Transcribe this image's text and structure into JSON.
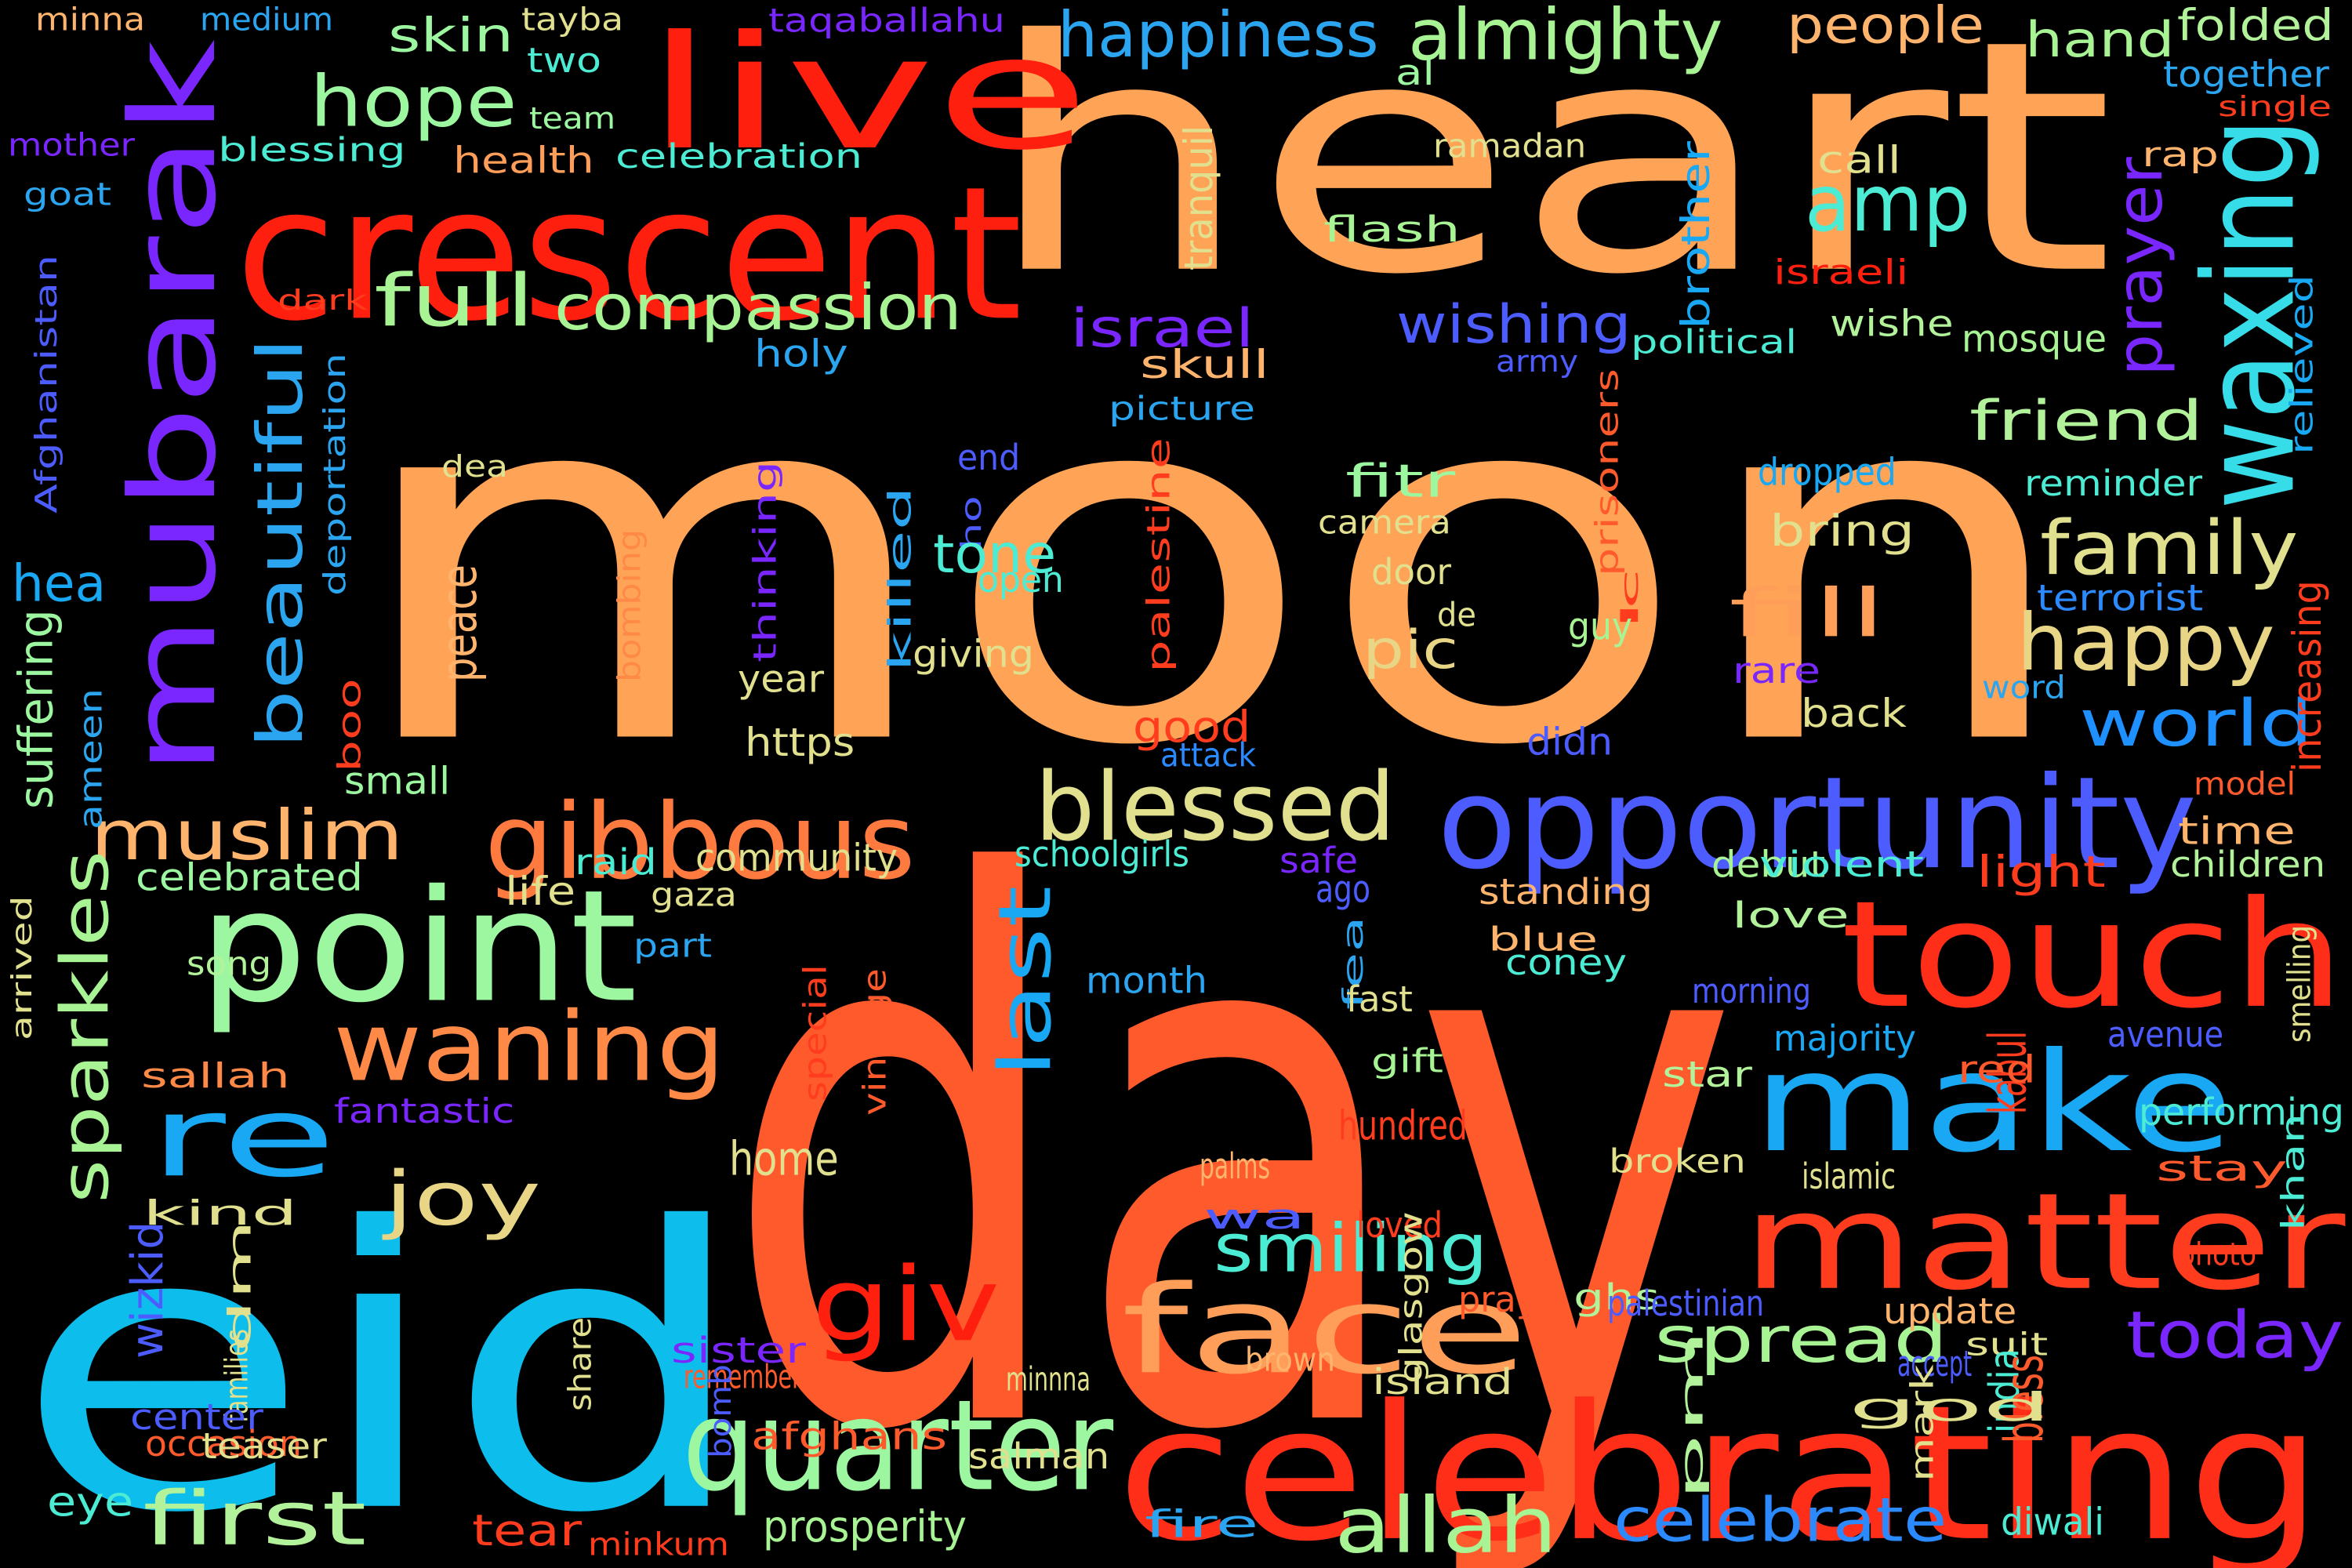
{
  "title": "",
  "background_color": "#000000",
  "words": [
    {
      "text": "moon",
      "color": "#FFA456"
    },
    {
      "text": "day",
      "color": "#FF5A2C"
    },
    {
      "text": "heart",
      "color": "#FFA456"
    },
    {
      "text": "eid",
      "color": "#0DBDEB"
    },
    {
      "text": "crescent",
      "color": "#FF1F0F"
    },
    {
      "text": "live",
      "color": "#FF1F0F"
    },
    {
      "text": "mubarak",
      "color": "#7A26FF"
    },
    {
      "text": "celebrating",
      "color": "#FF2E18"
    },
    {
      "text": "touch",
      "color": "#FF2E18"
    },
    {
      "text": "point",
      "color": "#9CF7A0"
    },
    {
      "text": "matter",
      "color": "#FF3D1E"
    },
    {
      "text": "make",
      "color": "#18A8F4"
    },
    {
      "text": "opportunity",
      "color": "#4C5CFF"
    },
    {
      "text": "re",
      "color": "#18A8F4"
    },
    {
      "text": "gibbous",
      "color": "#FF7A3E"
    },
    {
      "text": "waning",
      "color": "#FF8A48"
    },
    {
      "text": "quarter",
      "color": "#9CF7A0"
    },
    {
      "text": "blessed",
      "color": "#E0E08E"
    },
    {
      "text": "face",
      "color": "#FF9E58"
    },
    {
      "text": "giv",
      "color": "#FF1F0F"
    },
    {
      "text": "waxing",
      "color": "#36DCE8"
    },
    {
      "text": "happy",
      "color": "#E8D686"
    },
    {
      "text": "family",
      "color": "#E0E08E"
    },
    {
      "text": "compassion",
      "color": "#A8F494"
    },
    {
      "text": "happiness",
      "color": "#2BA5F0"
    },
    {
      "text": "almighty",
      "color": "#A8F494"
    },
    {
      "text": "hope",
      "color": "#9CF7A0"
    },
    {
      "text": "full",
      "color": "#A8F494"
    },
    {
      "text": "amp",
      "color": "#4CECD4"
    },
    {
      "text": "beautiful",
      "color": "#2BA5F0"
    },
    {
      "text": "muslim",
      "color": "#FFB46E"
    },
    {
      "text": "sparkles",
      "color": "#A8F494"
    },
    {
      "text": "joy",
      "color": "#E8D686"
    },
    {
      "text": "first",
      "color": "#B2F29A"
    },
    {
      "text": "allah",
      "color": "#A8F494"
    },
    {
      "text": "celebrate",
      "color": "#2B8AFF"
    },
    {
      "text": "spread",
      "color": "#A8F494"
    },
    {
      "text": "today",
      "color": "#7A26FF"
    },
    {
      "text": "smiling",
      "color": "#4CECD4"
    },
    {
      "text": "last",
      "color": "#18A8F4"
    },
    {
      "text": "fill",
      "color": "#FF9E58"
    },
    {
      "text": "pic",
      "color": "#E8D686"
    },
    {
      "text": "world",
      "color": "#1E90FF"
    },
    {
      "text": "israel",
      "color": "#7A26FF"
    },
    {
      "text": "wishing",
      "color": "#4C5CFF"
    },
    {
      "text": "friend",
      "color": "#B2F29A"
    },
    {
      "text": "prayer",
      "color": "#7A26FF"
    },
    {
      "text": "people",
      "color": "#FFB46E"
    },
    {
      "text": "hand",
      "color": "#A8F494"
    },
    {
      "text": "folded",
      "color": "#B2F29A"
    },
    {
      "text": "skin",
      "color": "#9CF7A0"
    },
    {
      "text": "minna",
      "color": "#FFB46E"
    },
    {
      "text": "medium",
      "color": "#2BA5F0"
    },
    {
      "text": "tayba",
      "color": "#E0E08E"
    },
    {
      "text": "taqaballahu",
      "color": "#7A26FF"
    },
    {
      "text": "together",
      "color": "#2BA5F0"
    },
    {
      "text": "single",
      "color": "#FF3D1E"
    },
    {
      "text": "two",
      "color": "#4CECD4"
    },
    {
      "text": "team",
      "color": "#9CF7A0"
    },
    {
      "text": "al",
      "color": "#9CF7A0"
    },
    {
      "text": "mother",
      "color": "#7A26FF"
    },
    {
      "text": "blessing",
      "color": "#4CECD4"
    },
    {
      "text": "health",
      "color": "#FF9E58"
    },
    {
      "text": "celebration",
      "color": "#4CECD4"
    },
    {
      "text": "ramadan",
      "color": "#E0E08E"
    },
    {
      "text": "call",
      "color": "#E0E08E"
    },
    {
      "text": "rap",
      "color": "#FFB46E"
    },
    {
      "text": "goat",
      "color": "#2BA5F0"
    },
    {
      "text": "tranquil",
      "color": "#E0E08E"
    },
    {
      "text": "brother",
      "color": "#18A8F4"
    },
    {
      "text": "flash",
      "color": "#A8F494"
    },
    {
      "text": "israeli",
      "color": "#FF1F0F"
    },
    {
      "text": "dark",
      "color": "#FF3D1E"
    },
    {
      "text": "Afghanistan",
      "color": "#4C5CFF"
    },
    {
      "text": "political",
      "color": "#4CECD4"
    },
    {
      "text": "wishe",
      "color": "#B2F29A"
    },
    {
      "text": "mosque",
      "color": "#A8F494"
    },
    {
      "text": "holy",
      "color": "#2BA5F0"
    },
    {
      "text": "skull",
      "color": "#FFB46E"
    },
    {
      "text": "army",
      "color": "#4C5CFF"
    },
    {
      "text": "picture",
      "color": "#2BA5F0"
    },
    {
      "text": "relieved",
      "color": "#18A8F4"
    },
    {
      "text": "deportation",
      "color": "#2BA5F0"
    },
    {
      "text": "prisoners",
      "color": "#FF5A2C"
    },
    {
      "text": "dea",
      "color": "#E0E08E"
    },
    {
      "text": "end",
      "color": "#4C5CFF"
    },
    {
      "text": "dropped",
      "color": "#18A8F4"
    },
    {
      "text": "reminder",
      "color": "#4CECD4"
    },
    {
      "text": "thinking",
      "color": "#7A26FF"
    },
    {
      "text": "fitr",
      "color": "#9CF7A0"
    },
    {
      "text": "camera",
      "color": "#E0E08E"
    },
    {
      "text": "bring",
      "color": "#E0E08E"
    },
    {
      "text": "ho",
      "color": "#4C5CFF"
    },
    {
      "text": "palestine",
      "color": "#FF3D1E"
    },
    {
      "text": "tone",
      "color": "#4CECD4"
    },
    {
      "text": "open",
      "color": "#4CECD4"
    },
    {
      "text": "killed",
      "color": "#2BA5F0"
    },
    {
      "text": "hea",
      "color": "#18A8F4"
    },
    {
      "text": "door",
      "color": "#E0E08E"
    },
    {
      "text": "c",
      "color": "#FF3D1E"
    },
    {
      "text": "l",
      "color": "#FF3D1E"
    },
    {
      "text": "terrorist",
      "color": "#2B8AFF"
    },
    {
      "text": "peace",
      "color": "#FFB46E"
    },
    {
      "text": "bombing",
      "color": "#FF8A48"
    },
    {
      "text": "de",
      "color": "#E0E08E"
    },
    {
      "text": "guy",
      "color": "#A8F494"
    },
    {
      "text": "increasing",
      "color": "#FF3D1E"
    },
    {
      "text": "suffering",
      "color": "#9CF7A0"
    },
    {
      "text": "giving",
      "color": "#E0E08E"
    },
    {
      "text": "rare",
      "color": "#7A26FF"
    },
    {
      "text": "year",
      "color": "#E0E08E"
    },
    {
      "text": "word",
      "color": "#2BA5F0"
    },
    {
      "text": "ameen",
      "color": "#2BA5F0"
    },
    {
      "text": "boo",
      "color": "#FF3D1E"
    },
    {
      "text": "back",
      "color": "#E0E08E"
    },
    {
      "text": "https",
      "color": "#E0E08E"
    },
    {
      "text": "good",
      "color": "#FF3D1E"
    },
    {
      "text": "didn",
      "color": "#4C5CFF"
    },
    {
      "text": "attack",
      "color": "#2B8AFF"
    },
    {
      "text": "small",
      "color": "#9CF7A0"
    },
    {
      "text": "model",
      "color": "#FF5A2C"
    },
    {
      "text": "time",
      "color": "#FFB46E"
    },
    {
      "text": "celebrated",
      "color": "#9CF7A0"
    },
    {
      "text": "life",
      "color": "#E0E08E"
    },
    {
      "text": "raid",
      "color": "#4CECD4"
    },
    {
      "text": "community",
      "color": "#E0E08E"
    },
    {
      "text": "schoolgirls",
      "color": "#4CECD4"
    },
    {
      "text": "safe",
      "color": "#7A26FF"
    },
    {
      "text": "debut",
      "color": "#A8F494"
    },
    {
      "text": "violent",
      "color": "#4CECD4"
    },
    {
      "text": "light",
      "color": "#FF3D1E"
    },
    {
      "text": "children",
      "color": "#B2F29A"
    },
    {
      "text": "gaza",
      "color": "#E0E08E"
    },
    {
      "text": "ago",
      "color": "#4C5CFF"
    },
    {
      "text": "standing",
      "color": "#FFB46E"
    },
    {
      "text": "arrived",
      "color": "#E0E08E"
    },
    {
      "text": "song",
      "color": "#B2F29A"
    },
    {
      "text": "part",
      "color": "#2BA5F0"
    },
    {
      "text": "fea",
      "color": "#2BA5F0"
    },
    {
      "text": "blue",
      "color": "#FFB46E"
    },
    {
      "text": "coney",
      "color": "#4CECD4"
    },
    {
      "text": "love",
      "color": "#B2F29A"
    },
    {
      "text": "smelling",
      "color": "#E0E08E"
    },
    {
      "text": "special",
      "color": "#FF3D1E"
    },
    {
      "text": "vintage",
      "color": "#FF5A2C"
    },
    {
      "text": "month",
      "color": "#2BA5F0"
    },
    {
      "text": "fast",
      "color": "#E0E08E"
    },
    {
      "text": "morning",
      "color": "#4C5CFF"
    },
    {
      "text": "majority",
      "color": "#18A8F4"
    },
    {
      "text": "avenue",
      "color": "#4C5CFF"
    },
    {
      "text": "kabul",
      "color": "#FF3D1E"
    },
    {
      "text": "red",
      "color": "#FF5A2C"
    },
    {
      "text": "sallah",
      "color": "#FF8A48"
    },
    {
      "text": "gift",
      "color": "#A8F494"
    },
    {
      "text": "star",
      "color": "#B2F29A"
    },
    {
      "text": "fantastic",
      "color": "#7A26FF"
    },
    {
      "text": "hundred",
      "color": "#FF3D1E"
    },
    {
      "text": "performing",
      "color": "#4CECD4"
    },
    {
      "text": "home",
      "color": "#E0E08E"
    },
    {
      "text": "khan",
      "color": "#4CECD4"
    },
    {
      "text": "kind",
      "color": "#E0E08E"
    },
    {
      "text": "palms",
      "color": "#FFB46E"
    },
    {
      "text": "broken",
      "color": "#E0E08E"
    },
    {
      "text": "islamic",
      "color": "#E0E08E"
    },
    {
      "text": "stay",
      "color": "#FF5A2C"
    },
    {
      "text": "wa",
      "color": "#4C5CFF"
    },
    {
      "text": "wizkid",
      "color": "#4C5CFF"
    },
    {
      "text": "loved",
      "color": "#FF3D1E"
    },
    {
      "text": "dm",
      "color": "#E0E08E"
    },
    {
      "text": "pray",
      "color": "#FF5A2C"
    },
    {
      "text": "ghs",
      "color": "#B2F29A"
    },
    {
      "text": "palestinian",
      "color": "#4C5CFF"
    },
    {
      "text": "update",
      "color": "#FFB46E"
    },
    {
      "text": "pm",
      "color": "#B2F29A"
    },
    {
      "text": "photo",
      "color": "#FF3D1E"
    },
    {
      "text": "suit",
      "color": "#E0E08E"
    },
    {
      "text": "families",
      "color": "#E0E08E"
    },
    {
      "text": "sister",
      "color": "#7A26FF"
    },
    {
      "text": "remember",
      "color": "#FF5A2C"
    },
    {
      "text": "brown",
      "color": "#FFB46E"
    },
    {
      "text": "minnna",
      "color": "#E0E08E"
    },
    {
      "text": "accept",
      "color": "#4C5CFF"
    },
    {
      "text": "india",
      "color": "#4CECD4"
    },
    {
      "text": "bless",
      "color": "#FF5A2C"
    },
    {
      "text": "center",
      "color": "#4C5CFF"
    },
    {
      "text": "bomb",
      "color": "#4C5CFF"
    },
    {
      "text": "island",
      "color": "#E0E08E"
    },
    {
      "text": "mark",
      "color": "#E0E08E"
    },
    {
      "text": "god",
      "color": "#E0E08E"
    },
    {
      "text": "share",
      "color": "#E0E08E"
    },
    {
      "text": "glasgow",
      "color": "#E0E08E"
    },
    {
      "text": "occasion",
      "color": "#FF5A2C"
    },
    {
      "text": "afghans",
      "color": "#FF5A2C"
    },
    {
      "text": "teaser",
      "color": "#E0E08E"
    },
    {
      "text": "salman",
      "color": "#E0E08E"
    },
    {
      "text": "eye",
      "color": "#4CECD4"
    },
    {
      "text": "tear",
      "color": "#FF3D1E"
    },
    {
      "text": "minkum",
      "color": "#FF3D1E"
    },
    {
      "text": "prosperity",
      "color": "#A8F494"
    },
    {
      "text": "fire",
      "color": "#2BA5F0"
    },
    {
      "text": "diwali",
      "color": "#4CECD4"
    }
  ]
}
